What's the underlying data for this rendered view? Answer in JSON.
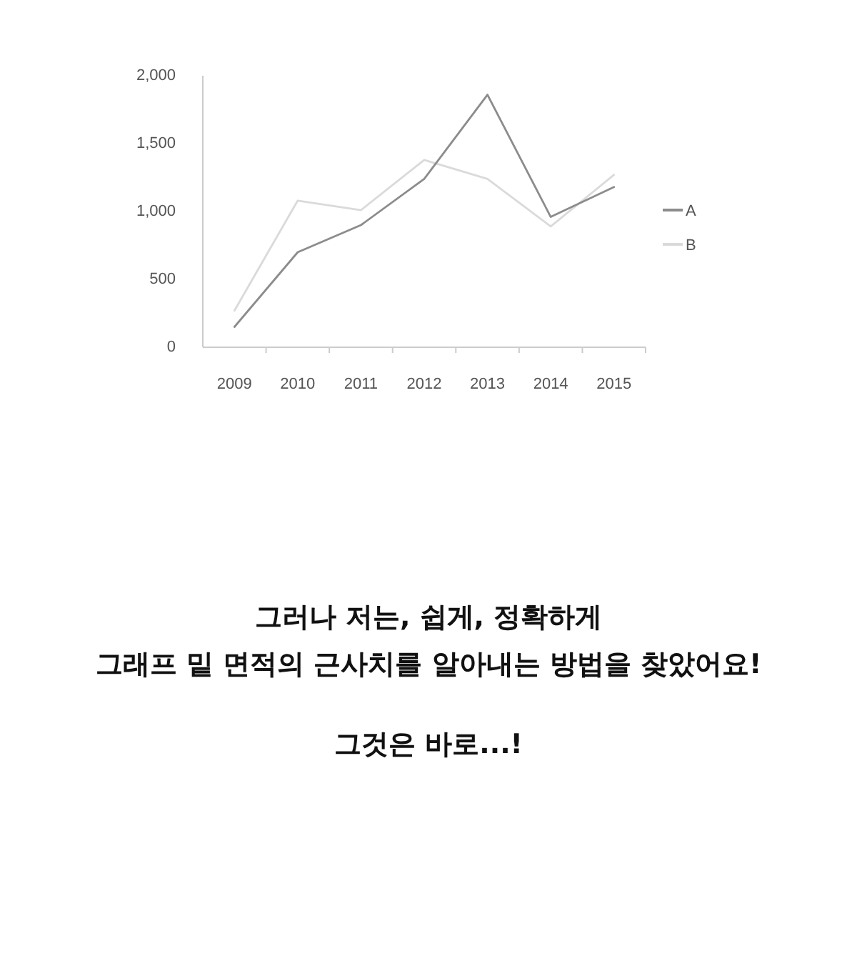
{
  "chart_data": {
    "type": "line",
    "categories": [
      "2009",
      "2010",
      "2011",
      "2012",
      "2013",
      "2014",
      "2015"
    ],
    "series": [
      {
        "name": "A",
        "color": "#8c8c8c",
        "values": [
          150,
          700,
          900,
          1240,
          1860,
          960,
          1180
        ]
      },
      {
        "name": "B",
        "color": "#dadada",
        "values": [
          270,
          1080,
          1010,
          1380,
          1240,
          890,
          1270
        ]
      }
    ],
    "ylim": [
      0,
      2000
    ],
    "yticks": [
      {
        "value": 0,
        "label": "0"
      },
      {
        "value": 500,
        "label": "500"
      },
      {
        "value": 1000,
        "label": "1,000"
      },
      {
        "value": 1500,
        "label": "1,500"
      },
      {
        "value": 2000,
        "label": "2,000"
      }
    ],
    "grid": false,
    "legend": "right",
    "marker": "none",
    "line_style": "solid",
    "annotations": [
      "그러나 저는, 쉽게, 정확하게",
      "그래프 밑 면적의 근사치를 알아내는 방법을 찾았어요!",
      "그것은 바로...!"
    ]
  }
}
